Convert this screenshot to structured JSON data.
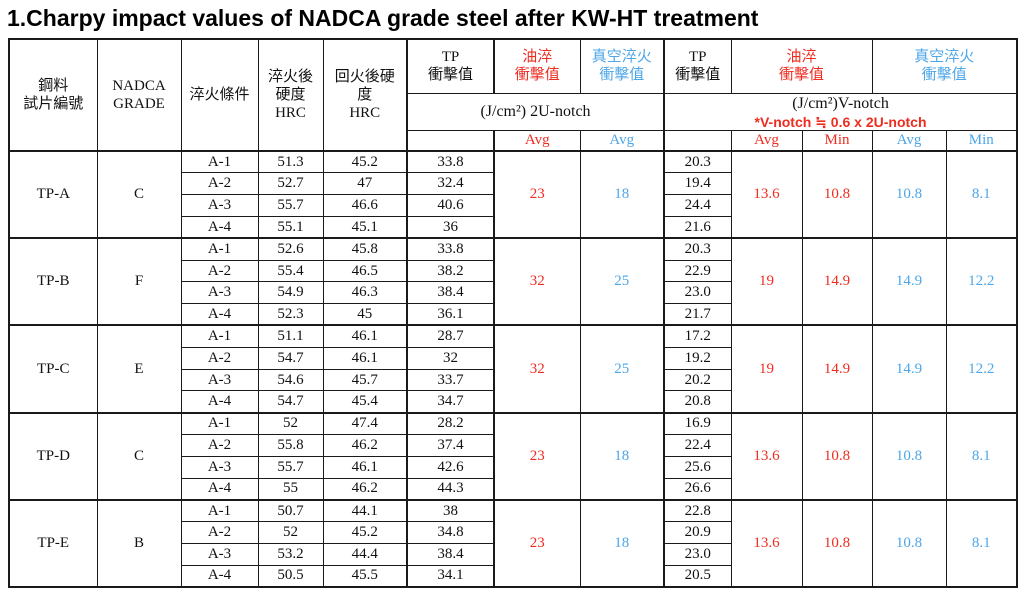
{
  "title": "1.Charpy impact values of NADCA grade steel after KW-HT treatment",
  "colors": {
    "red": "#ee2c20",
    "blue": "#4da6e8",
    "border": "#1a1a1a"
  },
  "table": {
    "header": {
      "specimen_l1": "鋼料",
      "specimen_l2": "試片編號",
      "grade_l1": "NADCA",
      "grade_l2": "GRADE",
      "quench_condition": "淬火條件",
      "hrc_quench_l1": "淬火後",
      "hrc_quench_l2": "硬度",
      "hrc_quench_l3": "HRC",
      "hrc_temper_l1": "回火後硬",
      "hrc_temper_l2": "度",
      "hrc_temper_l3": "HRC",
      "tp_l1": "TP",
      "tp_l2": "衝擊值",
      "oil_l1": "油淬",
      "oil_l2": "衝擊值",
      "vac_l1": "真空淬火",
      "vac_l2": "衝擊值",
      "unotch_unit": "(J/cm²) 2U-notch",
      "vnotch_unit": "(J/cm²)V-notch",
      "vnotch_note": "*V-notch ≒ 0.6 x 2U-notch",
      "avg": "Avg",
      "min": "Min"
    },
    "groups": [
      {
        "specimen": "TP-A",
        "grade": "C",
        "rows": [
          {
            "cond": "A-1",
            "hrc_q": "51.3",
            "hrc_t": "45.2",
            "tp_u": "33.8",
            "tp_v": "20.3"
          },
          {
            "cond": "A-2",
            "hrc_q": "52.7",
            "hrc_t": "47",
            "tp_u": "32.4",
            "tp_v": "19.4"
          },
          {
            "cond": "A-3",
            "hrc_q": "55.7",
            "hrc_t": "46.6",
            "tp_u": "40.6",
            "tp_v": "24.4"
          },
          {
            "cond": "A-4",
            "hrc_q": "55.1",
            "hrc_t": "45.1",
            "tp_u": "36",
            "tp_v": "21.6"
          }
        ],
        "oil_u_avg": "23",
        "vac_u_avg": "18",
        "oil_v_avg": "13.6",
        "oil_v_min": "10.8",
        "vac_v_avg": "10.8",
        "vac_v_min": "8.1"
      },
      {
        "specimen": "TP-B",
        "grade": "F",
        "rows": [
          {
            "cond": "A-1",
            "hrc_q": "52.6",
            "hrc_t": "45.8",
            "tp_u": "33.8",
            "tp_v": "20.3"
          },
          {
            "cond": "A-2",
            "hrc_q": "55.4",
            "hrc_t": "46.5",
            "tp_u": "38.2",
            "tp_v": "22.9"
          },
          {
            "cond": "A-3",
            "hrc_q": "54.9",
            "hrc_t": "46.3",
            "tp_u": "38.4",
            "tp_v": "23.0"
          },
          {
            "cond": "A-4",
            "hrc_q": "52.3",
            "hrc_t": "45",
            "tp_u": "36.1",
            "tp_v": "21.7"
          }
        ],
        "oil_u_avg": "32",
        "vac_u_avg": "25",
        "oil_v_avg": "19",
        "oil_v_min": "14.9",
        "vac_v_avg": "14.9",
        "vac_v_min": "12.2"
      },
      {
        "specimen": "TP-C",
        "grade": "E",
        "rows": [
          {
            "cond": "A-1",
            "hrc_q": "51.1",
            "hrc_t": "46.1",
            "tp_u": "28.7",
            "tp_v": "17.2"
          },
          {
            "cond": "A-2",
            "hrc_q": "54.7",
            "hrc_t": "46.1",
            "tp_u": "32",
            "tp_v": "19.2"
          },
          {
            "cond": "A-3",
            "hrc_q": "54.6",
            "hrc_t": "45.7",
            "tp_u": "33.7",
            "tp_v": "20.2"
          },
          {
            "cond": "A-4",
            "hrc_q": "54.7",
            "hrc_t": "45.4",
            "tp_u": "34.7",
            "tp_v": "20.8"
          }
        ],
        "oil_u_avg": "32",
        "vac_u_avg": "25",
        "oil_v_avg": "19",
        "oil_v_min": "14.9",
        "vac_v_avg": "14.9",
        "vac_v_min": "12.2"
      },
      {
        "specimen": "TP-D",
        "grade": "C",
        "rows": [
          {
            "cond": "A-1",
            "hrc_q": "52",
            "hrc_t": "47.4",
            "tp_u": "28.2",
            "tp_v": "16.9"
          },
          {
            "cond": "A-2",
            "hrc_q": "55.8",
            "hrc_t": "46.2",
            "tp_u": "37.4",
            "tp_v": "22.4"
          },
          {
            "cond": "A-3",
            "hrc_q": "55.7",
            "hrc_t": "46.1",
            "tp_u": "42.6",
            "tp_v": "25.6"
          },
          {
            "cond": "A-4",
            "hrc_q": "55",
            "hrc_t": "46.2",
            "tp_u": "44.3",
            "tp_v": "26.6"
          }
        ],
        "oil_u_avg": "23",
        "vac_u_avg": "18",
        "oil_v_avg": "13.6",
        "oil_v_min": "10.8",
        "vac_v_avg": "10.8",
        "vac_v_min": "8.1"
      },
      {
        "specimen": "TP-E",
        "grade": "B",
        "rows": [
          {
            "cond": "A-1",
            "hrc_q": "50.7",
            "hrc_t": "44.1",
            "tp_u": "38",
            "tp_v": "22.8"
          },
          {
            "cond": "A-2",
            "hrc_q": "52",
            "hrc_t": "45.2",
            "tp_u": "34.8",
            "tp_v": "20.9"
          },
          {
            "cond": "A-3",
            "hrc_q": "53.2",
            "hrc_t": "44.4",
            "tp_u": "38.4",
            "tp_v": "23.0"
          },
          {
            "cond": "A-4",
            "hrc_q": "50.5",
            "hrc_t": "45.5",
            "tp_u": "34.1",
            "tp_v": "20.5"
          }
        ],
        "oil_u_avg": "23",
        "vac_u_avg": "18",
        "oil_v_avg": "13.6",
        "oil_v_min": "10.8",
        "vac_v_avg": "10.8",
        "vac_v_min": "8.1"
      }
    ]
  }
}
